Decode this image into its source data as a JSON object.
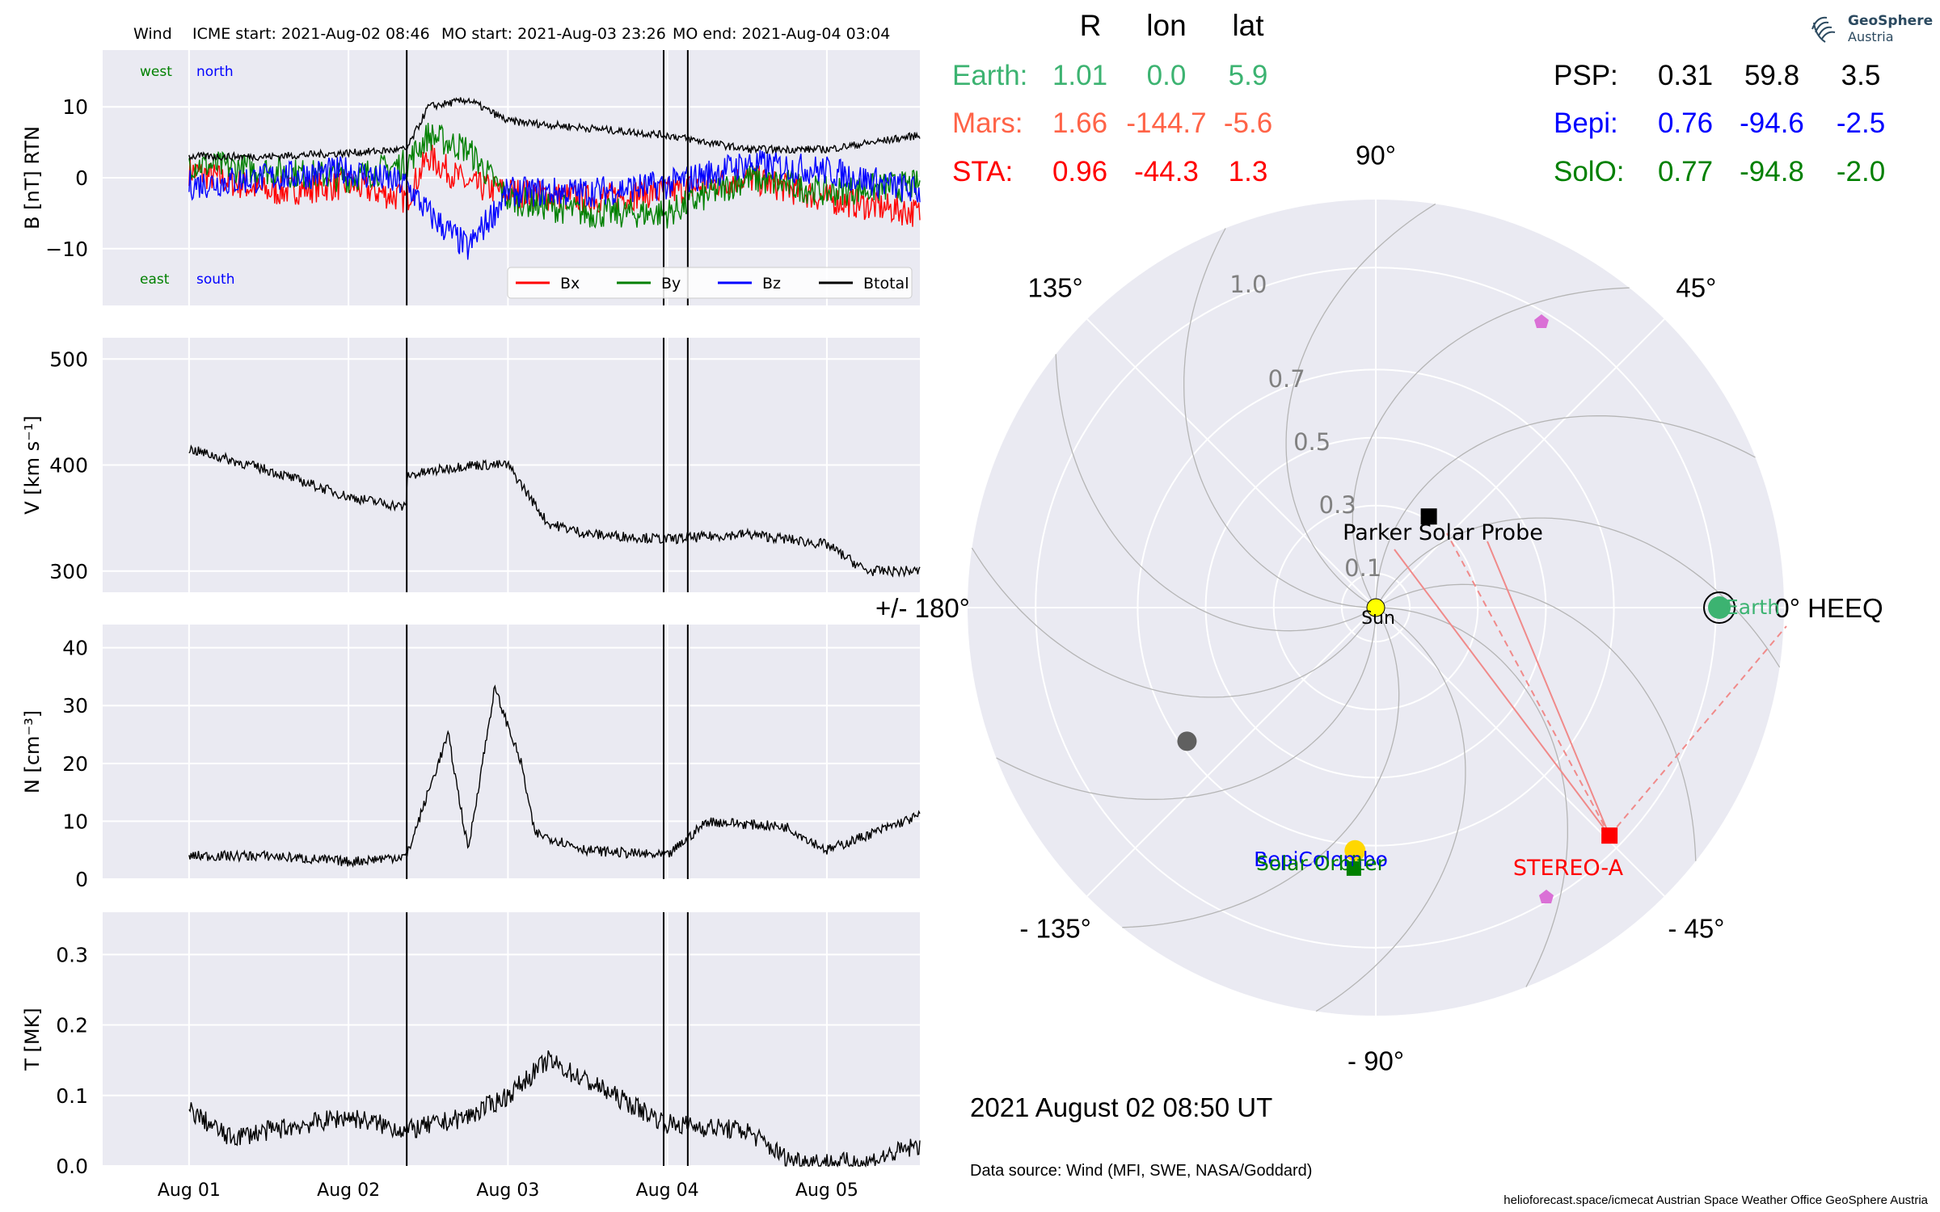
{
  "header": {
    "spacecraft": "Wind",
    "icme_start": "ICME start: 2021-Aug-02 08:46",
    "mo_start": "MO start: 2021-Aug-03 23:26",
    "mo_end": "MO end: 2021-Aug-04 03:04"
  },
  "colors": {
    "bx": "#ff0000",
    "by": "#008000",
    "bz": "#0000ff",
    "btotal": "#000000",
    "earth": "#3cb371",
    "mars": "#ff6347",
    "sta": "#ff0000",
    "psp": "#000000",
    "bepi": "#0000ff",
    "solo": "#008000",
    "bg": "#eaeaf2"
  },
  "chart_data": [
    {
      "type": "line",
      "panel": "magnetic_field",
      "ylabel": "B [nT] RTN",
      "ylim": [
        -18,
        18
      ],
      "yticks": [
        "10",
        "0",
        "−10"
      ],
      "direction_labels": {
        "top_left": "west",
        "top_right": "north",
        "bottom_left": "east",
        "bottom_right": "south"
      },
      "x": [
        "Aug 01 00:00",
        "Aug 01 12:00",
        "Aug 02 00:00",
        "Aug 02 08:46",
        "Aug 02 12:00",
        "Aug 02 18:00",
        "Aug 03 00:00",
        "Aug 03 12:00",
        "Aug 04 00:00",
        "Aug 04 12:00",
        "Aug 05 00:00",
        "Aug 05 14:00"
      ],
      "series": [
        {
          "name": "Bx",
          "values": [
            1,
            -2,
            -1,
            -3,
            3,
            -1,
            -2,
            -3,
            -2,
            0,
            -3,
            -5
          ]
        },
        {
          "name": "By",
          "values": [
            2,
            1,
            0,
            2,
            6,
            4,
            -3,
            -5,
            -5,
            0,
            -2,
            -1
          ]
        },
        {
          "name": "Bz",
          "values": [
            -1,
            0,
            1,
            -1,
            -5,
            -10,
            -2,
            -2,
            -1,
            2,
            1,
            -2
          ]
        },
        {
          "name": "Btotal",
          "values": [
            3,
            3,
            3.5,
            4,
            10,
            11,
            8,
            7,
            6,
            4,
            4,
            6
          ]
        }
      ],
      "legend": [
        "Bx",
        "By",
        "Bz",
        "Btotal"
      ],
      "legend_position": "bottom-right"
    },
    {
      "type": "line",
      "panel": "speed",
      "ylabel": "V [km s⁻¹]",
      "ylim": [
        280,
        520
      ],
      "yticks": [
        "500",
        "400",
        "300"
      ],
      "x": [
        "Aug 01 00:00",
        "Aug 01 12:00",
        "Aug 02 00:00",
        "Aug 02 08:40",
        "Aug 02 08:50",
        "Aug 02 18:00",
        "Aug 03 00:00",
        "Aug 03 06:00",
        "Aug 03 12:00",
        "Aug 04 00:00",
        "Aug 04 12:00",
        "Aug 05 00:00",
        "Aug 05 06:00",
        "Aug 05 14:00"
      ],
      "series": [
        {
          "name": "V",
          "values": [
            415,
            395,
            370,
            360,
            390,
            400,
            400,
            345,
            335,
            330,
            335,
            325,
            300,
            300
          ]
        }
      ]
    },
    {
      "type": "line",
      "panel": "density",
      "ylabel": "N [cm⁻³]",
      "ylim": [
        0,
        44
      ],
      "yticks": [
        "40",
        "30",
        "20",
        "10",
        "0"
      ],
      "x": [
        "Aug 01 00:00",
        "Aug 01 12:00",
        "Aug 02 00:00",
        "Aug 02 08:46",
        "Aug 02 12:00",
        "Aug 02 15:00",
        "Aug 02 18:00",
        "Aug 02 22:00",
        "Aug 03 02:00",
        "Aug 03 04:00",
        "Aug 03 12:00",
        "Aug 04 00:00",
        "Aug 04 06:00",
        "Aug 04 18:00",
        "Aug 05 00:00",
        "Aug 05 14:00"
      ],
      "series": [
        {
          "name": "N",
          "values": [
            4,
            4,
            3,
            4,
            15,
            25,
            5,
            33,
            20,
            8,
            5,
            4,
            10,
            9,
            5,
            11
          ]
        }
      ]
    },
    {
      "type": "line",
      "panel": "temperature",
      "ylabel": "T [MK]",
      "ylim": [
        0,
        0.36
      ],
      "yticks": [
        "0.3",
        "0.2",
        "0.1",
        "0.0"
      ],
      "xticks": [
        "Aug 01",
        "Aug 02",
        "Aug 03",
        "Aug 04",
        "Aug 05"
      ],
      "x": [
        "Aug 01 00:00",
        "Aug 01 06:00",
        "Aug 01 12:00",
        "Aug 02 00:00",
        "Aug 02 08:46",
        "Aug 02 18:00",
        "Aug 03 00:00",
        "Aug 03 06:00",
        "Aug 03 18:00",
        "Aug 04 00:00",
        "Aug 04 12:00",
        "Aug 04 18:00",
        "Aug 05 00:00",
        "Aug 05 06:00",
        "Aug 05 14:00"
      ],
      "series": [
        {
          "name": "T",
          "values": [
            0.08,
            0.04,
            0.05,
            0.07,
            0.05,
            0.07,
            0.1,
            0.15,
            0.09,
            0.06,
            0.05,
            0.01,
            0.005,
            0.005,
            0.03
          ]
        }
      ]
    },
    {
      "type": "scatter",
      "panel": "polar_position_map",
      "angle_labels": [
        "90°",
        "45°",
        "0° HEEQ",
        "- 45°",
        "- 90°",
        "- 135°",
        "+/- 180°",
        "135°"
      ],
      "radial_labels": [
        "0.1",
        "0.3",
        "0.5",
        "0.7",
        "1.0"
      ],
      "rlim": [
        0,
        1.2
      ],
      "grid": true,
      "points": [
        {
          "name": "Sun",
          "r": 0,
          "lon": 0
        },
        {
          "name": "Earth",
          "r": 1.01,
          "lon": 0.0
        },
        {
          "name": "Mars",
          "r": 1.66,
          "lon": -144.7
        },
        {
          "name": "STEREO-A",
          "r": 0.96,
          "lon": -44.3
        },
        {
          "name": "Parker Solar Probe",
          "r": 0.31,
          "lon": 59.8
        },
        {
          "name": "BepiColombo",
          "r": 0.76,
          "lon": -94.6
        },
        {
          "name": "Solar Orbiter",
          "r": 0.77,
          "lon": -94.8
        }
      ]
    }
  ],
  "positions_table": {
    "headers": [
      "R",
      "lon",
      "lat"
    ],
    "rows_left": [
      {
        "name": "Earth:",
        "r": "1.01",
        "lon": "0.0",
        "lat": "5.9"
      },
      {
        "name": "Mars:",
        "r": "1.66",
        "lon": "-144.7",
        "lat": "-5.6"
      },
      {
        "name": "STA:",
        "r": "0.96",
        "lon": "-44.3",
        "lat": "1.3"
      }
    ],
    "rows_right": [
      {
        "name": "PSP:",
        "r": "0.31",
        "lon": "59.8",
        "lat": "3.5"
      },
      {
        "name": "Bepi:",
        "r": "0.76",
        "lon": "-94.6",
        "lat": "-2.5"
      },
      {
        "name": "SolO:",
        "r": "0.77",
        "lon": "-94.8",
        "lat": "-2.0"
      }
    ]
  },
  "map_labels": {
    "psp": "Parker Solar Probe",
    "sun": "Sun",
    "earth": "Earth",
    "stereo": "STEREO-A",
    "bepi": "BepiColombo",
    "solo": "Solar Orbiter"
  },
  "date": "2021 August 02  08:50 UT",
  "data_source": "Data source: Wind (MFI, SWE, NASA/Goddard)",
  "footer": "helioforecast.space/icmecat   Austrian Space Weather Office   GeoSphere Austria",
  "logo": {
    "name": "GeoSphere",
    "sub": "Austria"
  }
}
